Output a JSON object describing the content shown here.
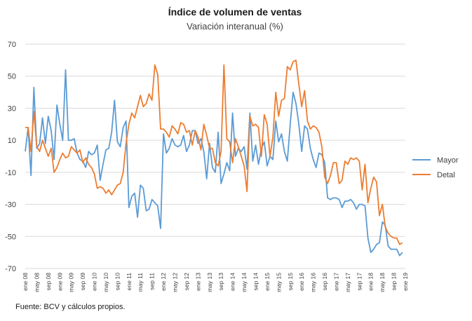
{
  "chart_data": {
    "type": "line",
    "title": "Índice de volumen de ventas",
    "subtitle": "Variación interanual (%)",
    "source": "Fuente: BCV y cálculos propios.",
    "ylim": [
      -70,
      70
    ],
    "yticks": [
      70,
      50,
      30,
      10,
      -10,
      -30,
      -50,
      -70
    ],
    "grid": true,
    "legend": "right",
    "x_start": "ene 08",
    "x_end": "ene 19",
    "xtick_labels": [
      "ene 08",
      "may 08",
      "sep 08",
      "ene 09",
      "may 09",
      "sep 09",
      "ene 10",
      "may 10",
      "sep 10",
      "ene 11",
      "may 11",
      "sep 11",
      "ene 12",
      "may 12",
      "sep 12",
      "ene 13",
      "may 13",
      "sep 13",
      "ene 14",
      "may 14",
      "sep 14",
      "ene 15",
      "may 15",
      "sep 15",
      "ene 16",
      "may 16",
      "sep 16",
      "ene 17",
      "may 17",
      "sep 17",
      "ene 18",
      "may 18",
      "sep 18",
      "ene 19"
    ],
    "series": [
      {
        "name": "Mayor",
        "color": "#5b9bd5",
        "values": [
          3,
          18,
          -12,
          43,
          5,
          8,
          24,
          8,
          25,
          16,
          -2,
          32,
          20,
          10,
          54,
          10,
          10,
          11,
          2,
          -2,
          -3,
          -7,
          3,
          1,
          2,
          7,
          -15,
          -5,
          4,
          5,
          15,
          35,
          9,
          6,
          18,
          22,
          -32,
          -25,
          -23,
          -38,
          -18,
          -20,
          -34,
          -33,
          -27,
          -29,
          -31,
          -45,
          14,
          2,
          5,
          11,
          7,
          6,
          7,
          13,
          3,
          7,
          16,
          16,
          8,
          11,
          3,
          -14,
          8,
          -7,
          -10,
          15,
          -17,
          -11,
          -4,
          -9,
          27,
          0,
          5,
          3,
          6,
          -8,
          27,
          -3,
          7,
          -5,
          5,
          9,
          -6,
          0,
          -2,
          22,
          9,
          14,
          3,
          -3,
          20,
          40,
          33,
          20,
          3,
          19,
          17,
          5,
          -2,
          -7,
          2,
          1,
          -4,
          -26,
          -27,
          -26,
          -26,
          -27,
          -32,
          -28,
          -28,
          -27,
          -29,
          -33,
          -30,
          -30,
          -31,
          -51,
          -60,
          -58,
          -55,
          -54,
          -41,
          -43,
          -56,
          -58,
          -58,
          -58,
          -62,
          -60
        ],
        "start_index": 0
      },
      {
        "name": "Detal",
        "color": "#ed7d31",
        "values": [
          18,
          18,
          3,
          28,
          6,
          3,
          10,
          5,
          0,
          5,
          -10,
          -7,
          -2,
          2,
          -1,
          0,
          6,
          4,
          2,
          4,
          -4,
          -1,
          -5,
          -7,
          -11,
          -20,
          -19,
          -20,
          -23,
          -21,
          -24,
          -21,
          -18,
          -17,
          -10,
          8,
          20,
          27,
          24,
          31,
          38,
          31,
          33,
          39,
          35,
          57,
          51,
          17,
          17,
          15,
          12,
          19,
          17,
          14,
          21,
          20,
          15,
          16,
          7,
          16,
          12,
          4,
          20,
          13,
          5,
          5,
          -4,
          -6,
          3,
          57,
          11,
          9,
          -4,
          11,
          6,
          0,
          -6,
          -22,
          25,
          19,
          20,
          18,
          0,
          26,
          20,
          0,
          12,
          40,
          25,
          35,
          36,
          56,
          54,
          59,
          60,
          45,
          31,
          41,
          22,
          17,
          19,
          18,
          15,
          6,
          -13,
          -17,
          -12,
          -4,
          -4,
          -17,
          -15,
          -3,
          -5,
          -1,
          -2,
          -1,
          -3,
          -21,
          -5,
          -29,
          -20,
          -13,
          -16,
          -37,
          -30,
          -44,
          -48,
          -50,
          -51,
          -51,
          -55,
          -54
        ],
        "start_index": 0
      }
    ]
  }
}
